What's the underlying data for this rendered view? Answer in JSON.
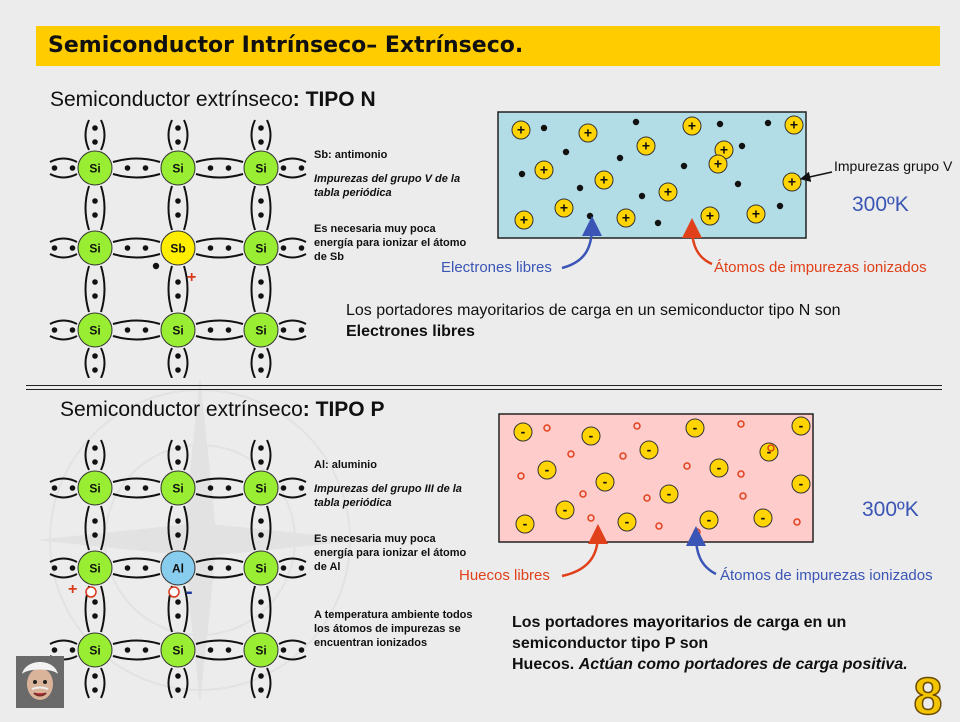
{
  "title": "Semiconductor Intrínseco– Extrínseco.",
  "page_number": "8",
  "colors": {
    "title_bar": "#ffcc00",
    "atom_si": "#99ee33",
    "atom_donor": "#ffee00",
    "atom_acceptor": "#88ccee",
    "crystal_n": "#b3dde6",
    "crystal_p": "#ffcccc",
    "arrow_blue": "#3a55b5",
    "arrow_red": "#e0401a",
    "label_red": "#e0401a",
    "label_blue": "#3a55b5"
  },
  "type_n": {
    "heading_prefix": "Semiconductor extrínseco",
    "heading_bold": ": TIPO N",
    "lattice": [
      [
        "Si",
        "Si",
        "Si"
      ],
      [
        "Si",
        "Sb",
        "Si"
      ],
      [
        "Si",
        "Si",
        "Si"
      ]
    ],
    "charge_sign": "+",
    "impurity_name": "Sb: antimonio",
    "impurity_group": "Impurezas del grupo V de la tabla periódica",
    "ionization_note": "Es necesaria muy poca energía para ionizar el átomo de Sb",
    "ion_sign": "+",
    "label_impurities": "Impurezas grupo V",
    "label_free": "Electrones libres",
    "label_ionized": "Átomos de impurezas ionizados",
    "temperature": "300ºK",
    "carriers_text": "Los portadores mayoritarios de carga en un semiconductor tipo N son",
    "carriers_bold": "Electrones libres"
  },
  "type_p": {
    "heading_prefix": "Semiconductor extrínseco",
    "heading_bold": ": TIPO P",
    "lattice": [
      [
        "Si",
        "Si",
        "Si"
      ],
      [
        "Si",
        "Al",
        "Si"
      ],
      [
        "Si",
        "Si",
        "Si"
      ]
    ],
    "charge_plus": "+",
    "charge_minus": "-",
    "impurity_name": "Al: aluminio",
    "impurity_group": "Impurezas del grupo III de la tabla periódica",
    "ionization_note": "Es necesaria muy poca energía para ionizar el átomo de Al",
    "ambient_note": "A temperatura ambiente todos los átomos de impurezas se encuentran ionizados",
    "ion_sign": "-",
    "label_free": "Huecos libres",
    "label_ionized": "Átomos de impurezas ionizados",
    "temperature": "300ºK",
    "carriers_line1": "Los portadores mayoritarios de carga en un semiconductor tipo P son",
    "carriers_line2_bold": "Huecos.",
    "carriers_line2_italic": "Actúan como portadores de carga positiva."
  }
}
